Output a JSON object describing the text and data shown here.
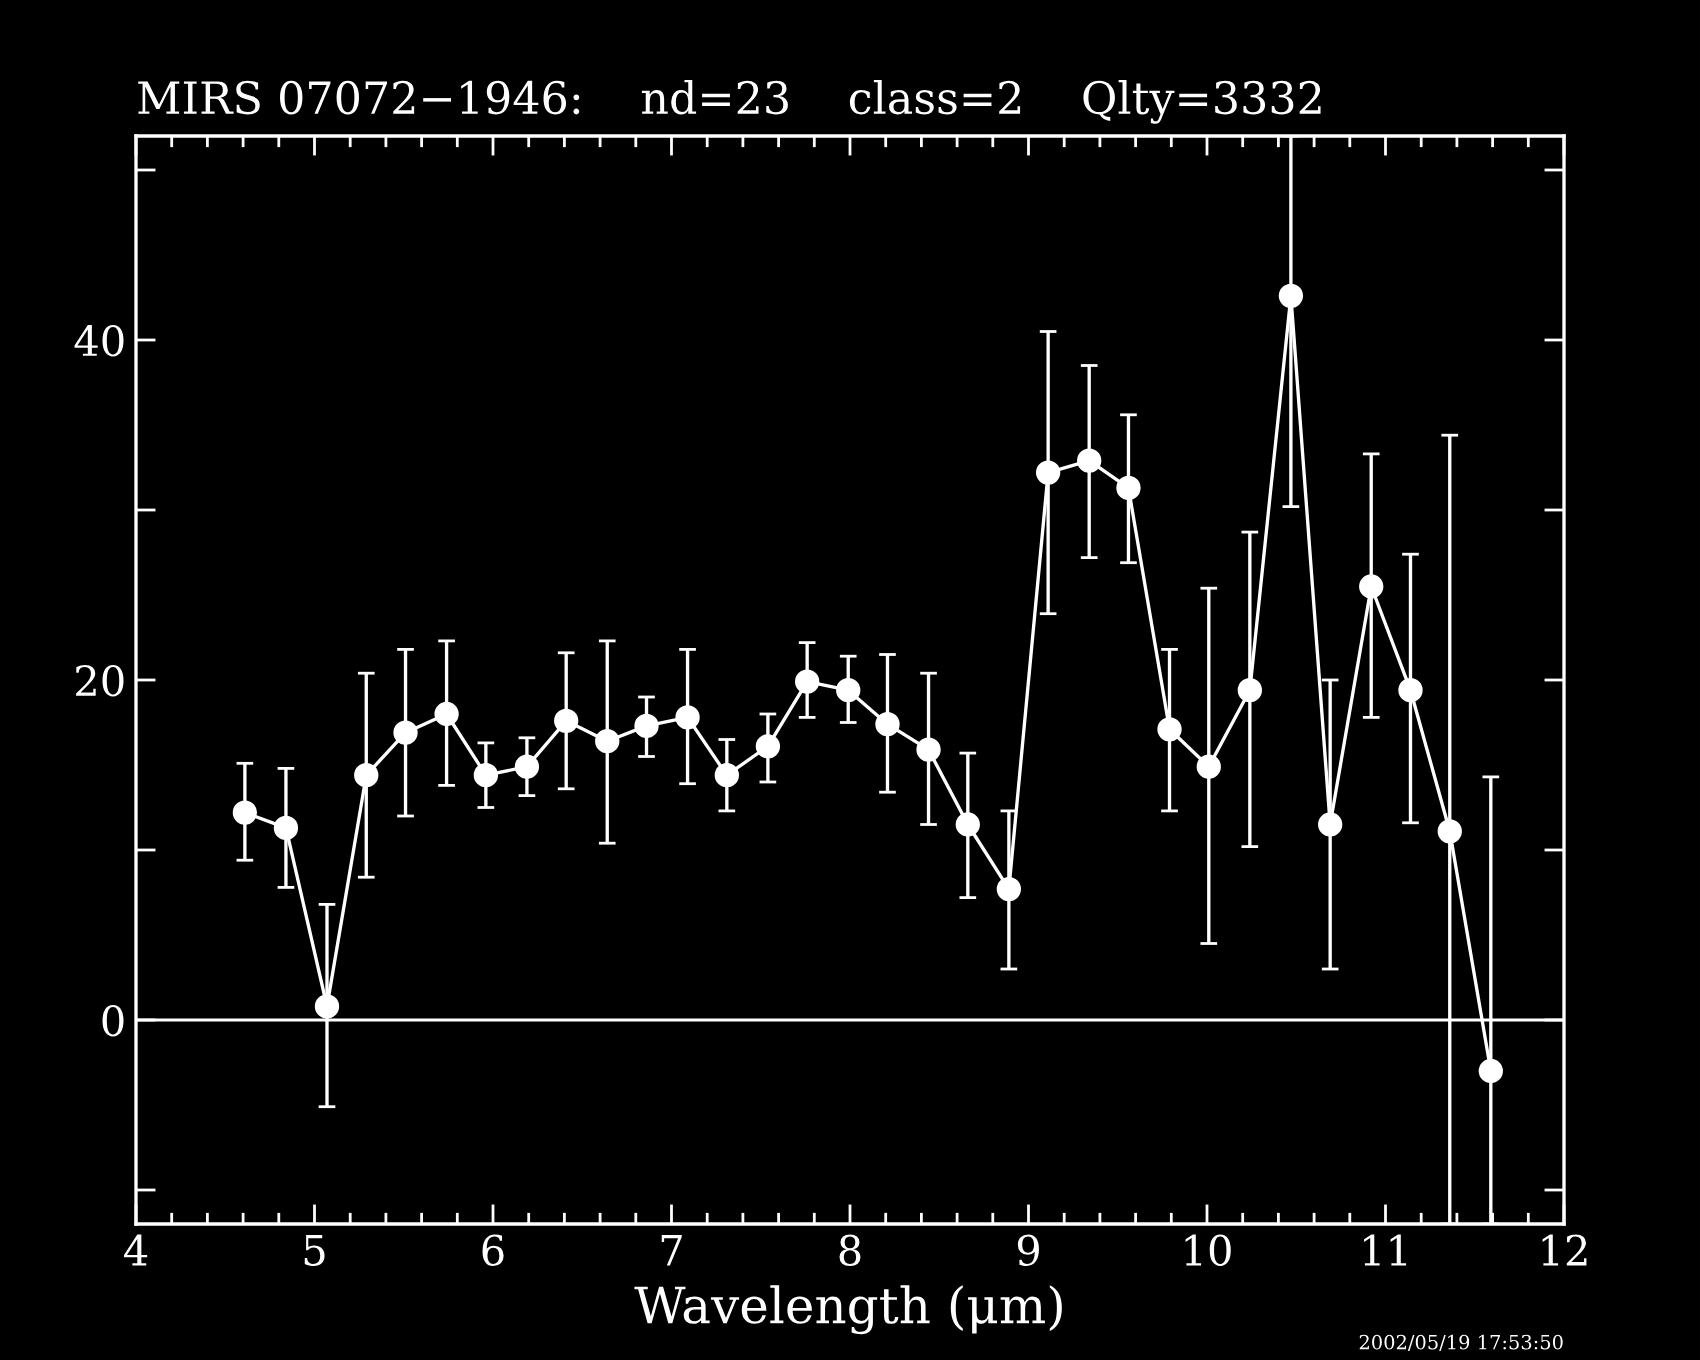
{
  "chart_data": {
    "type": "line",
    "title": "MIRS 07072−1946:    nd=23    class=2    Qlty=3332",
    "xlabel": "Wavelength (μm)",
    "x": [
      4.61,
      4.84,
      5.07,
      5.29,
      5.51,
      5.74,
      5.96,
      6.19,
      6.41,
      6.64,
      6.86,
      7.09,
      7.31,
      7.54,
      7.76,
      7.99,
      8.21,
      8.44,
      8.66,
      8.89,
      9.11,
      9.34,
      9.56,
      9.79,
      10.01,
      10.24,
      10.47,
      10.69,
      10.92,
      11.14,
      11.36,
      11.59
    ],
    "series": [
      {
        "color": "#ffffff",
        "values": [
          12.2,
          11.3,
          0.8,
          14.4,
          16.9,
          18.0,
          14.4,
          14.9,
          17.6,
          16.4,
          17.3,
          17.8,
          14.4,
          16.1,
          19.9,
          19.4,
          17.4,
          15.9,
          11.5,
          7.7,
          32.2,
          32.9,
          31.3,
          17.1,
          14.9,
          19.4,
          42.6,
          11.5,
          25.5,
          19.4,
          11.1,
          -3.0
        ],
        "errors": [
          [
            9.4,
            15.1
          ],
          [
            7.8,
            14.8
          ],
          [
            -5.1,
            6.8
          ],
          [
            8.4,
            20.4
          ],
          [
            12.0,
            21.8
          ],
          [
            13.8,
            22.3
          ],
          [
            12.5,
            16.3
          ],
          [
            13.2,
            16.6
          ],
          [
            13.6,
            21.6
          ],
          [
            10.4,
            22.3
          ],
          [
            15.5,
            19.0
          ],
          [
            13.9,
            21.8
          ],
          [
            12.3,
            16.5
          ],
          [
            14.0,
            18.0
          ],
          [
            17.8,
            22.2
          ],
          [
            17.5,
            21.4
          ],
          [
            13.4,
            21.5
          ],
          [
            11.5,
            20.4
          ],
          [
            7.2,
            15.7
          ],
          [
            3.0,
            12.3
          ],
          [
            23.9,
            40.5
          ],
          [
            27.2,
            38.5
          ],
          [
            26.9,
            35.6
          ],
          [
            12.3,
            21.8
          ],
          [
            4.5,
            25.4
          ],
          [
            10.2,
            28.7
          ],
          [
            30.2,
            52
          ],
          [
            3.0,
            20.0
          ],
          [
            17.8,
            33.3
          ],
          [
            11.6,
            27.4
          ],
          [
            -12,
            34.4
          ],
          [
            -12,
            14.3
          ]
        ]
      }
    ],
    "marker": "circle",
    "line_style": "solid",
    "xlim": [
      4,
      12
    ],
    "ylim": [
      -12,
      52
    ],
    "xticks": [
      4,
      {
        "value": 4.2,
        "label": null
      },
      {
        "value": 4.4,
        "label": null
      },
      {
        "value": 4.6,
        "label": null
      },
      {
        "value": 4.8,
        "label": null
      },
      5,
      {
        "value": 5.2,
        "label": null
      },
      {
        "value": 5.4,
        "label": null
      },
      {
        "value": 5.6,
        "label": null
      },
      {
        "value": 5.8,
        "label": null
      },
      6,
      {
        "value": 6.2,
        "label": null
      },
      {
        "value": 6.4,
        "label": null
      },
      {
        "value": 6.6,
        "label": null
      },
      {
        "value": 6.8,
        "label": null
      },
      7,
      {
        "value": 7.2,
        "label": null
      },
      {
        "value": 7.4,
        "label": null
      },
      {
        "value": 7.6,
        "label": null
      },
      {
        "value": 7.8,
        "label": null
      },
      8,
      {
        "value": 8.2,
        "label": null
      },
      {
        "value": 8.4,
        "label": null
      },
      {
        "value": 8.6,
        "label": null
      },
      {
        "value": 8.8,
        "label": null
      },
      9,
      {
        "value": 9.2,
        "label": null
      },
      {
        "value": 9.4,
        "label": null
      },
      {
        "value": 9.6,
        "label": null
      },
      {
        "value": 9.8,
        "label": null
      },
      10,
      {
        "value": 10.2,
        "label": null
      },
      {
        "value": 10.4,
        "label": null
      },
      {
        "value": 10.6,
        "label": null
      },
      {
        "value": 10.8,
        "label": null
      },
      11,
      {
        "value": 11.2,
        "label": null
      },
      {
        "value": 11.4,
        "label": null
      },
      {
        "value": 11.6,
        "label": null
      },
      {
        "value": 11.8,
        "label": null
      },
      12
    ],
    "yticks": [
      {
        "value": -10,
        "label": null
      },
      0,
      {
        "value": 10,
        "label": null
      },
      20,
      {
        "value": 30,
        "label": null
      },
      40,
      {
        "value": 50,
        "label": null
      }
    ],
    "ref_lines": [
      {
        "axis": "y",
        "value": 0,
        "color": "#ffffff"
      }
    ],
    "annotations": [
      "2002/05/19 17:53:50"
    ],
    "grid": false,
    "legend": false
  }
}
